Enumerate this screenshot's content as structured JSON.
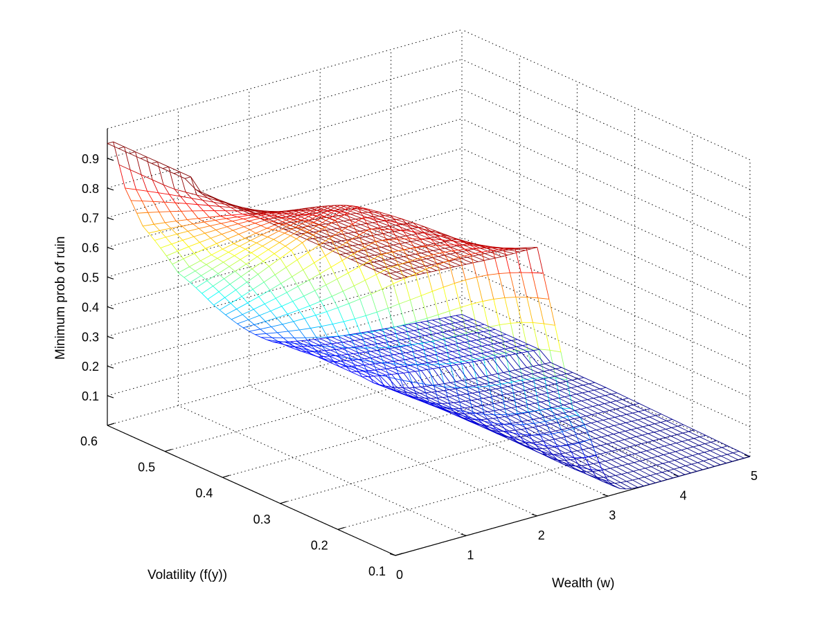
{
  "chart_data": {
    "type": "surface",
    "title": "",
    "xlabel": "Wealth (w)",
    "ylabel": "Volatility (f(y))",
    "zlabel": "Minimum prob of ruin",
    "xlim": [
      0,
      5
    ],
    "ylim": [
      0.1,
      0.6
    ],
    "zlim": [
      0,
      1.0
    ],
    "x_ticks": [
      "0",
      "1",
      "2",
      "3",
      "4",
      "5"
    ],
    "y_ticks": [
      "0.1",
      "0.2",
      "0.3",
      "0.4",
      "0.5",
      "0.6"
    ],
    "z_ticks": [
      "0.1",
      "0.2",
      "0.3",
      "0.4",
      "0.5",
      "0.6",
      "0.7",
      "0.8",
      "0.9"
    ],
    "grid": true,
    "colormap": "jet",
    "surface_samples": {
      "description_of_columns": "z (min prob of ruin) at selected wealth w for volatility f(y)",
      "w": [
        0,
        0.5,
        1,
        1.5,
        2,
        2.5,
        3,
        4,
        5
      ],
      "rows": [
        {
          "y": 0.6,
          "z": [
            0.93,
            0.52,
            0.3,
            0.22,
            0.17,
            0.12,
            0.09,
            0.05,
            0.02
          ]
        },
        {
          "y": 0.35,
          "z": [
            0.93,
            0.9,
            0.88,
            0.86,
            0.55,
            0.1,
            0.07,
            0.04,
            0.02
          ]
        },
        {
          "y": 0.1,
          "z": [
            0.93,
            0.92,
            0.91,
            0.9,
            0.9,
            0.05,
            0.0,
            0.0,
            0.0
          ]
        }
      ]
    },
    "colors": {
      "jet_dark_blue": "#00008f",
      "jet_blue": "#0000ff",
      "jet_cyan": "#00ffff",
      "jet_yellow": "#ffff00",
      "jet_red": "#ff0000",
      "jet_dark_red": "#800000"
    }
  }
}
